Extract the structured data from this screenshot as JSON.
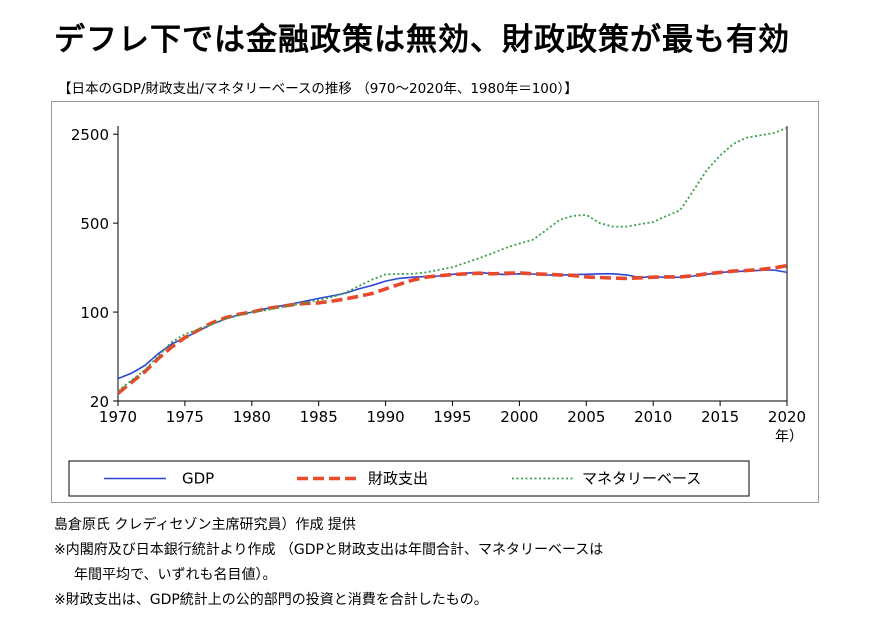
{
  "headline": "デフレ下では金融政策は無効、財政政策が最も有効",
  "chart_data": {
    "type": "line",
    "title": "【日本のGDP/財政支出/マネタリーベースの推移 （970～2020年、1980年＝100）】",
    "xlabel": "年）",
    "ylabel": "",
    "y_scale": "log",
    "xlim": [
      1970,
      2020
    ],
    "ylim": [
      20,
      2900
    ],
    "x_ticks": [
      "1970",
      "1975",
      "1980",
      "1985",
      "1990",
      "1995",
      "2000",
      "2005",
      "2010",
      "2015",
      "2020"
    ],
    "y_ticks": [
      "20",
      "100",
      "500",
      "2500"
    ],
    "grid": false,
    "legend_position": "bottom",
    "series": [
      {
        "name": "GDP",
        "color": "#2c46d8",
        "style": "solid",
        "x": [
          1970,
          1971,
          1972,
          1973,
          1974,
          1975,
          1976,
          1977,
          1978,
          1979,
          1980,
          1981,
          1982,
          1983,
          1984,
          1985,
          1986,
          1987,
          1988,
          1989,
          1990,
          1991,
          1992,
          1993,
          1994,
          1995,
          1996,
          1997,
          1998,
          1999,
          2000,
          2001,
          2002,
          2003,
          2004,
          2005,
          2006,
          2007,
          2008,
          2009,
          2010,
          2011,
          2012,
          2013,
          2014,
          2015,
          2016,
          2017,
          2018,
          2019,
          2020
        ],
        "values": [
          30,
          33,
          38,
          47,
          56,
          63,
          71,
          80,
          88,
          95,
          100,
          106,
          111,
          116,
          122,
          128,
          134,
          141,
          152,
          162,
          175,
          184,
          188,
          190,
          192,
          198,
          202,
          205,
          200,
          197,
          200,
          199,
          196,
          195,
          197,
          198,
          200,
          200,
          196,
          187,
          190,
          187,
          188,
          192,
          198,
          205,
          208,
          210,
          213,
          214,
          205
        ]
      },
      {
        "name": "財政支出",
        "color": "#e8482c",
        "style": "dashed",
        "x": [
          1970,
          1971,
          1972,
          1973,
          1974,
          1975,
          1976,
          1977,
          1978,
          1979,
          1980,
          1981,
          1982,
          1983,
          1984,
          1985,
          1986,
          1987,
          1988,
          1989,
          1990,
          1991,
          1992,
          1993,
          1994,
          1995,
          1996,
          1997,
          1998,
          1999,
          2000,
          2001,
          2002,
          2003,
          2004,
          2005,
          2006,
          2007,
          2008,
          2009,
          2010,
          2011,
          2012,
          2013,
          2014,
          2015,
          2016,
          2017,
          2018,
          2019,
          2020
        ],
        "values": [
          23,
          28,
          34,
          43,
          53,
          63,
          72,
          82,
          90,
          96,
          100,
          106,
          110,
          114,
          117,
          118,
          122,
          127,
          133,
          140,
          152,
          165,
          178,
          188,
          193,
          197,
          200,
          202,
          200,
          202,
          203,
          200,
          198,
          196,
          194,
          189,
          187,
          185,
          184,
          186,
          188,
          189,
          189,
          193,
          200,
          205,
          210,
          212,
          216,
          222,
          232
        ]
      },
      {
        "name": "マネタリーベース",
        "color": "#3aa048",
        "style": "dotted",
        "x": [
          1970,
          1971,
          1972,
          1973,
          1974,
          1975,
          1976,
          1977,
          1978,
          1979,
          1980,
          1981,
          1982,
          1983,
          1984,
          1985,
          1986,
          1987,
          1988,
          1989,
          1990,
          1991,
          1992,
          1993,
          1994,
          1995,
          1996,
          1997,
          1998,
          1999,
          2000,
          2001,
          2002,
          2003,
          2004,
          2005,
          2006,
          2007,
          2008,
          2009,
          2010,
          2011,
          2012,
          2013,
          2014,
          2015,
          2016,
          2017,
          2018,
          2019,
          2020
        ],
        "values": [
          24,
          29,
          35,
          45,
          58,
          67,
          73,
          80,
          88,
          94,
          100,
          103,
          108,
          113,
          118,
          124,
          131,
          142,
          160,
          180,
          198,
          199,
          200,
          205,
          215,
          225,
          245,
          265,
          290,
          320,
          345,
          370,
          440,
          530,
          570,
          580,
          500,
          470,
          470,
          490,
          510,
          570,
          630,
          900,
          1300,
          1700,
          2100,
          2350,
          2450,
          2550,
          2800
        ]
      }
    ]
  },
  "notes": {
    "source": "島倉原氏 クレディセゾン主席研究員）作成 提供",
    "note1_line1": "※内閣府及び日本銀行統計より作成 （GDPと財政支出は年間合計、マネタリーベースは",
    "note1_line2": "年間平均で、いずれも名目値）。",
    "note2": "※財政支出は、GDP統計上の公的部門の投資と消費を合計したもの。"
  }
}
